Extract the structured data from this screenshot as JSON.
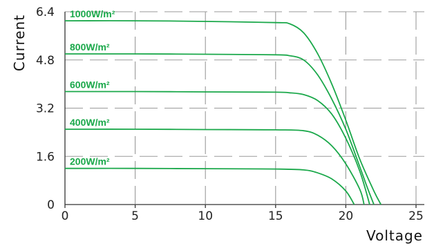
{
  "chart_data": {
    "type": "line",
    "xlabel": "Voltage",
    "ylabel": "Current",
    "xlim": [
      0,
      25
    ],
    "ylim": [
      0,
      6.4
    ],
    "x_ticks": [
      "0",
      "5",
      "10",
      "15",
      "20",
      "25"
    ],
    "y_ticks": [
      "0",
      "1.6",
      "3.2",
      "4.8",
      "6.4"
    ],
    "grid": true,
    "line_color": "#1aa84a",
    "series": [
      {
        "name": "1000W/m²",
        "x": [
          0,
          5,
          10,
          15,
          16,
          17,
          18,
          19,
          20,
          21,
          22,
          22.5
        ],
        "y": [
          6.1,
          6.1,
          6.08,
          6.04,
          6.0,
          5.7,
          5.0,
          4.0,
          2.8,
          1.5,
          0.45,
          0
        ]
      },
      {
        "name": "800W/m²",
        "x": [
          0,
          5,
          10,
          15,
          16,
          17,
          18,
          19,
          20,
          21,
          21.5,
          22
        ],
        "y": [
          5.0,
          5.0,
          4.99,
          4.97,
          4.94,
          4.8,
          4.3,
          3.5,
          2.5,
          1.25,
          0.6,
          0
        ]
      },
      {
        "name": "600W/m²",
        "x": [
          0,
          5,
          10,
          15,
          16,
          17,
          18,
          19,
          20,
          21,
          21.7
        ],
        "y": [
          3.75,
          3.75,
          3.74,
          3.73,
          3.71,
          3.65,
          3.45,
          3.0,
          2.2,
          1.1,
          0
        ]
      },
      {
        "name": "400W/m²",
        "x": [
          0,
          5,
          10,
          15,
          17,
          18,
          19,
          20,
          21,
          21.3
        ],
        "y": [
          2.5,
          2.5,
          2.49,
          2.48,
          2.45,
          2.3,
          1.95,
          1.35,
          0.5,
          0
        ]
      },
      {
        "name": "200W/m²",
        "x": [
          0,
          5,
          10,
          15,
          17,
          18,
          19,
          20,
          20.6
        ],
        "y": [
          1.2,
          1.2,
          1.19,
          1.18,
          1.15,
          1.05,
          0.85,
          0.45,
          0
        ]
      }
    ]
  }
}
